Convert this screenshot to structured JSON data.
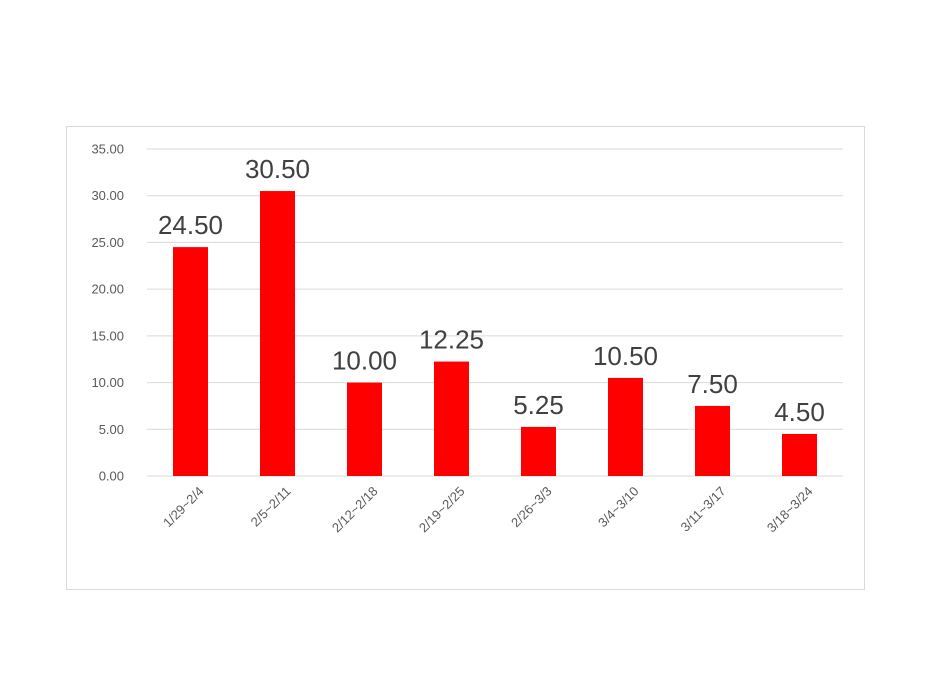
{
  "chart_data": {
    "type": "bar",
    "categories": [
      "1/29~2/4",
      "2/5~2/11",
      "2/12~2/18",
      "2/19~2/25",
      "2/26~3/3",
      "3/4~3/10",
      "3/11~3/17",
      "3/18~3/24"
    ],
    "values": [
      24.5,
      30.5,
      10.0,
      12.25,
      5.25,
      10.5,
      7.5,
      4.5
    ],
    "data_labels": [
      "24.50",
      "30.50",
      "10.00",
      "12.25",
      "5.25",
      "10.50",
      "7.50",
      "4.50"
    ],
    "y_ticks": [
      "0.00",
      "5.00",
      "10.00",
      "15.00",
      "20.00",
      "25.00",
      "30.00",
      "35.00"
    ],
    "ylim": [
      0,
      35
    ],
    "y_step": 5,
    "grid": true,
    "legend": "none",
    "bar_color": "#ff0000",
    "title": "",
    "xlabel": "",
    "ylabel": ""
  }
}
